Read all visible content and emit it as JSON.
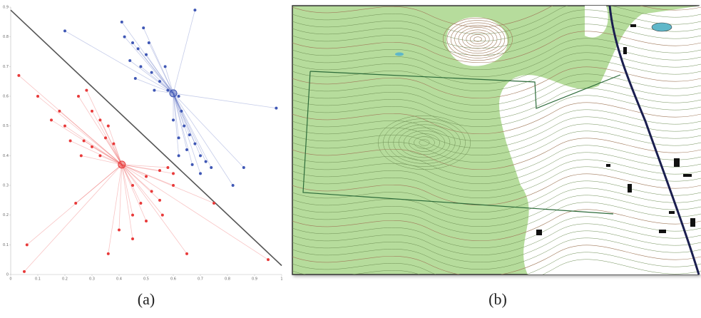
{
  "chart_data": {
    "type": "scatter",
    "xlim": [
      0,
      1
    ],
    "ylim": [
      0,
      0.9
    ],
    "xticks": [
      0,
      0.1,
      0.2,
      0.3,
      0.4,
      0.5,
      0.6,
      0.7,
      0.8,
      0.9,
      1
    ],
    "yticks": [
      0,
      0.1,
      0.2,
      0.3,
      0.4,
      0.5,
      0.6,
      0.7,
      0.8,
      0.9
    ],
    "boundary": {
      "x": [
        0,
        1
      ],
      "y": [
        0.89,
        0.03
      ],
      "color": "#555555"
    },
    "series": [
      {
        "color": "#3f57b5",
        "centroid": [
          0.6,
          0.61
        ],
        "x": [
          0.2,
          0.98,
          0.82,
          0.86,
          0.68,
          0.41,
          0.42,
          0.45,
          0.47,
          0.44,
          0.48,
          0.5,
          0.52,
          0.46,
          0.55,
          0.57,
          0.53,
          0.58,
          0.62,
          0.63,
          0.6,
          0.64,
          0.62,
          0.66,
          0.68,
          0.65,
          0.7,
          0.72,
          0.67,
          0.7,
          0.74,
          0.62,
          0.49,
          0.51
        ],
        "y": [
          0.82,
          0.56,
          0.3,
          0.36,
          0.89,
          0.85,
          0.8,
          0.78,
          0.76,
          0.72,
          0.7,
          0.74,
          0.68,
          0.66,
          0.65,
          0.7,
          0.62,
          0.62,
          0.6,
          0.55,
          0.52,
          0.5,
          0.46,
          0.47,
          0.44,
          0.42,
          0.4,
          0.38,
          0.37,
          0.34,
          0.36,
          0.4,
          0.83,
          0.78
        ]
      },
      {
        "color": "#e83a3a",
        "centroid": [
          0.41,
          0.37
        ],
        "x": [
          0.03,
          0.06,
          0.05,
          0.36,
          0.65,
          0.95,
          0.75,
          0.1,
          0.24,
          0.15,
          0.18,
          0.2,
          0.25,
          0.28,
          0.3,
          0.33,
          0.36,
          0.22,
          0.27,
          0.3,
          0.35,
          0.38,
          0.26,
          0.33,
          0.45,
          0.5,
          0.55,
          0.58,
          0.6,
          0.52,
          0.48,
          0.55,
          0.45,
          0.5,
          0.4,
          0.45,
          0.56,
          0.6
        ],
        "y": [
          0.67,
          0.1,
          0.01,
          0.07,
          0.07,
          0.05,
          0.24,
          0.6,
          0.24,
          0.52,
          0.55,
          0.5,
          0.6,
          0.62,
          0.55,
          0.52,
          0.5,
          0.45,
          0.45,
          0.43,
          0.46,
          0.44,
          0.4,
          0.4,
          0.3,
          0.33,
          0.35,
          0.36,
          0.34,
          0.28,
          0.24,
          0.25,
          0.2,
          0.18,
          0.15,
          0.12,
          0.2,
          0.3
        ]
      }
    ]
  },
  "captions": [
    "(a)",
    "(b)"
  ]
}
